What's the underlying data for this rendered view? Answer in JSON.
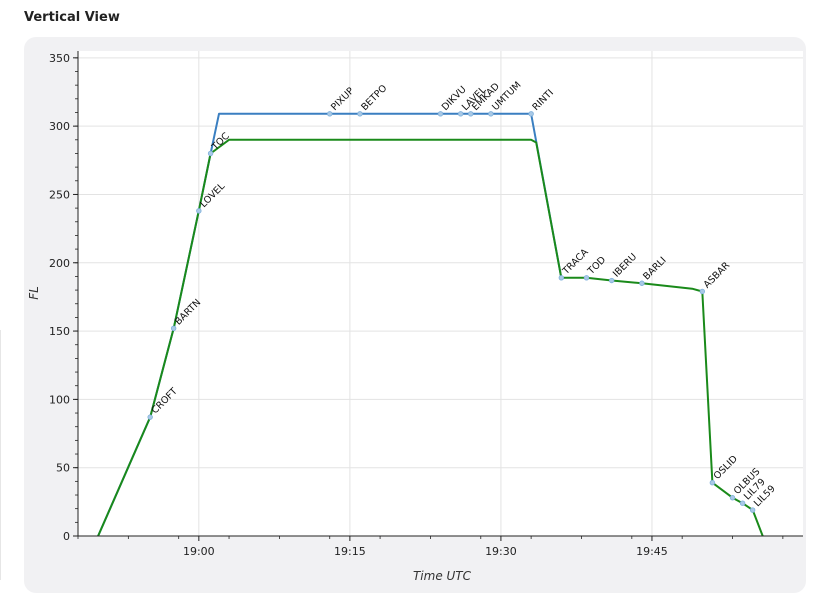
{
  "panel": {
    "title": "Vertical View"
  },
  "chart_data": {
    "type": "line",
    "xlabel": "Time UTC",
    "ylabel": "FL",
    "xlim": [
      "18:48",
      "20:00"
    ],
    "ylim": [
      0,
      355
    ],
    "grid": true,
    "x_ticks": [
      "19:00",
      "19:15",
      "19:30",
      "19:45"
    ],
    "y_ticks": [
      0,
      50,
      100,
      150,
      200,
      250,
      300,
      350
    ],
    "series": [
      {
        "color": "#3a7fc1",
        "points": [
          {
            "x": "18:50:00",
            "y": 0
          },
          {
            "x": "18:55:10",
            "y": 87
          },
          {
            "x": "18:57:30",
            "y": 152
          },
          {
            "x": "19:00:00",
            "y": 238
          },
          {
            "x": "19:01:10",
            "y": 280
          },
          {
            "x": "19:02:00",
            "y": 309
          },
          {
            "x": "19:13:00",
            "y": 309
          },
          {
            "x": "19:16:00",
            "y": 309
          },
          {
            "x": "19:24:00",
            "y": 309
          },
          {
            "x": "19:26:00",
            "y": 309
          },
          {
            "x": "19:27:00",
            "y": 309
          },
          {
            "x": "19:29:00",
            "y": 309
          },
          {
            "x": "19:33:00",
            "y": 309
          },
          {
            "x": "19:36:00",
            "y": 189
          }
        ]
      },
      {
        "color": "#1a8a1a",
        "points": [
          {
            "x": "18:50:00",
            "y": 0
          },
          {
            "x": "18:55:10",
            "y": 87
          },
          {
            "x": "18:57:30",
            "y": 152
          },
          {
            "x": "19:00:00",
            "y": 238
          },
          {
            "x": "19:01:10",
            "y": 280
          },
          {
            "x": "19:03:00",
            "y": 290
          },
          {
            "x": "19:33:00",
            "y": 290
          },
          {
            "x": "19:33:30",
            "y": 288
          },
          {
            "x": "19:36:00",
            "y": 189
          },
          {
            "x": "19:38:30",
            "y": 189
          },
          {
            "x": "19:41:00",
            "y": 187
          },
          {
            "x": "19:44:00",
            "y": 185
          },
          {
            "x": "19:49:00",
            "y": 181
          },
          {
            "x": "19:50:00",
            "y": 179
          },
          {
            "x": "19:51:00",
            "y": 39
          },
          {
            "x": "19:53:00",
            "y": 28
          },
          {
            "x": "19:54:00",
            "y": 24
          },
          {
            "x": "19:55:00",
            "y": 19
          },
          {
            "x": "19:56:00",
            "y": 0
          }
        ]
      }
    ],
    "waypoints": [
      {
        "name": "CROFT",
        "x": "18:55:10",
        "y": 87
      },
      {
        "name": "BARTN",
        "x": "18:57:30",
        "y": 152
      },
      {
        "name": "LOVEL",
        "x": "19:00:00",
        "y": 238
      },
      {
        "name": "TOC",
        "x": "19:01:10",
        "y": 280
      },
      {
        "name": "PIXUP",
        "x": "19:13:00",
        "y": 309
      },
      {
        "name": "BETPO",
        "x": "19:16:00",
        "y": 309
      },
      {
        "name": "DIKVU",
        "x": "19:24:00",
        "y": 309
      },
      {
        "name": "LAVEL",
        "x": "19:26:00",
        "y": 309
      },
      {
        "name": "EMKAD",
        "x": "19:27:00",
        "y": 309
      },
      {
        "name": "UMTUM",
        "x": "19:29:00",
        "y": 309
      },
      {
        "name": "RINTI",
        "x": "19:33:00",
        "y": 309
      },
      {
        "name": "TRACA",
        "x": "19:36:00",
        "y": 189
      },
      {
        "name": "TOD",
        "x": "19:38:30",
        "y": 189
      },
      {
        "name": "IBERU",
        "x": "19:41:00",
        "y": 187
      },
      {
        "name": "BARLI",
        "x": "19:44:00",
        "y": 185
      },
      {
        "name": "ASBAR",
        "x": "19:50:00",
        "y": 179
      },
      {
        "name": "OSLID",
        "x": "19:51:00",
        "y": 39
      },
      {
        "name": "OLBUS",
        "x": "19:53:00",
        "y": 28
      },
      {
        "name": "LIL79",
        "x": "19:54:00",
        "y": 24
      },
      {
        "name": "LIL59",
        "x": "19:55:00",
        "y": 19
      }
    ]
  }
}
